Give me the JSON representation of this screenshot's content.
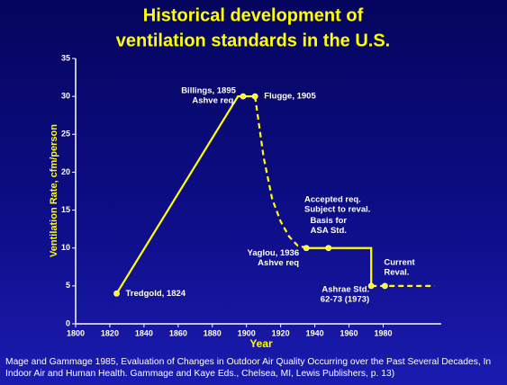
{
  "chart_data": {
    "type": "line",
    "title": [
      "Historical development of",
      "ventilation standards in the U.S."
    ],
    "x_label": "Year",
    "y_label": "Ventilation Rate, cfm/person",
    "source": "Mage and Gammage 1985, Evaluation of Changes in Outdoor Air Quality Occurring over the Past Several Decades, In Indoor Air and Human Health. Gammage and Kaye Eds., Chelsea, MI, Lewis Publishers, p. 13)",
    "x": [
      1824,
      1895,
      1905,
      1910,
      1915,
      1920,
      1925,
      1930,
      1936,
      1948,
      1973,
      1973,
      1981,
      2010
    ],
    "series": [
      {
        "color": "#ffff00",
        "dashed": false,
        "values": [
          4,
          30,
          30,
          null,
          null,
          null,
          null,
          null,
          10,
          10,
          10,
          5,
          null,
          null
        ]
      },
      {
        "color": "#ffff00",
        "dashed": true,
        "values": [
          null,
          null,
          30,
          22,
          16.5,
          13.5,
          11.5,
          10.3,
          10,
          null,
          null,
          5,
          5,
          5
        ]
      }
    ],
    "annotations": [
      {
        "text": [
          "Tredgold, 1824"
        ],
        "x": 1824,
        "y": 4
      },
      {
        "text": [
          "Billings, 1895",
          "Ashve req."
        ],
        "x": 1898,
        "y": 30
      },
      {
        "text": [
          "Flugge, 1905"
        ],
        "x": 1905,
        "y": 30
      },
      {
        "text": [
          "Accepted req.",
          "Subject to reval."
        ]
      },
      {
        "text": [
          "Yaglou, 1936",
          "Ashve req"
        ],
        "x": 1935,
        "y": 10
      },
      {
        "text": [
          "Basis for",
          "ASA Std."
        ],
        "x": 1948,
        "y": 10
      },
      {
        "text": [
          "Ashrae Std.",
          "62-73 (1973)"
        ],
        "x": 1973,
        "y": 5
      },
      {
        "text": [
          "Current",
          "Reval."
        ],
        "x": 1981,
        "y": 5
      }
    ],
    "xlim": [
      1800,
      2014
    ],
    "ylim": [
      0,
      35
    ],
    "xticks": [
      1800,
      1820,
      1840,
      1860,
      1880,
      1900,
      1920,
      1940,
      1960,
      1980
    ],
    "yticks": [
      0,
      5,
      10,
      15,
      20,
      25,
      30,
      35
    ],
    "marker_color": "#ffff00",
    "axis_color": "#ffffff"
  }
}
